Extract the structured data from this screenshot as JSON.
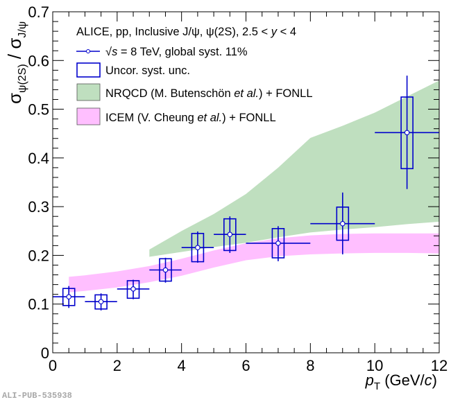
{
  "chart_data": {
    "type": "scatter",
    "title": "",
    "xlabel": "p_T (GeV/c)",
    "xlabel_parts": {
      "var": "p",
      "sub": "T",
      "unit": " (GeV/",
      "unit_var": "c",
      "close": ")"
    },
    "ylabel": "σ_ψ(2S) / σ_J/ψ",
    "ylabel_parts": {
      "sigma": "σ",
      "num_sub": "ψ(2S)",
      "slash": " / ",
      "den_sub": "J/ψ"
    },
    "xlim": [
      0,
      12
    ],
    "ylim": [
      0,
      0.7
    ],
    "x_ticks": [
      0,
      2,
      4,
      6,
      8,
      10,
      12
    ],
    "x_tick_labels": [
      "0",
      "2",
      "4",
      "6",
      "8",
      "10",
      "12"
    ],
    "y_ticks": [
      0,
      0.1,
      0.2,
      0.3,
      0.4,
      0.5,
      0.6,
      0.7
    ],
    "y_tick_labels": [
      "0",
      "0.1",
      "0.2",
      "0.3",
      "0.4",
      "0.5",
      "0.6",
      "0.7"
    ],
    "grid": false,
    "legend_position": "top-left",
    "legend": {
      "header": "ALICE, pp, Inclusive J/ψ, ψ(2S), 2.5 < y < 4",
      "header_parts": {
        "pre": "ALICE, pp, Inclusive J/ψ, ψ(2S), 2.5 < ",
        "var": "y",
        "post": " < 4"
      },
      "entries": [
        {
          "label": "√s = 8 TeV, global syst. 11%",
          "parts": {
            "root": "√",
            "var": "s",
            "post": " = 8 TeV, global syst. 11%"
          },
          "kind": "marker"
        },
        {
          "label": "Uncor. syst. unc.",
          "kind": "box"
        },
        {
          "label": "NRQCD (M. Butenschön et al.) + FONLL",
          "parts": {
            "pre": "NRQCD (M. Butenschön ",
            "ital": "et al.",
            "post": ") + FONLL"
          },
          "kind": "band-green"
        },
        {
          "label": "ICEM (V. Cheung et al.) + FONLL",
          "parts": {
            "pre": "ICEM (V. Cheung ",
            "ital": "et al.",
            "post": ") + FONLL"
          },
          "kind": "band-pink"
        }
      ]
    },
    "series": [
      {
        "name": "√s = 8 TeV, global syst. 11%",
        "type": "points",
        "color": "#0000cc",
        "points": [
          {
            "x": 0.5,
            "xlo": 0.0,
            "xhi": 1.0,
            "y": 0.115,
            "stat_lo": 0.092,
            "stat_hi": 0.137,
            "syst_lo": 0.097,
            "syst_hi": 0.132
          },
          {
            "x": 1.5,
            "xlo": 1.0,
            "xhi": 2.0,
            "y": 0.105,
            "stat_lo": 0.087,
            "stat_hi": 0.122,
            "syst_lo": 0.09,
            "syst_hi": 0.119
          },
          {
            "x": 2.5,
            "xlo": 2.0,
            "xhi": 3.0,
            "y": 0.131,
            "stat_lo": 0.11,
            "stat_hi": 0.15,
            "syst_lo": 0.112,
            "syst_hi": 0.148
          },
          {
            "x": 3.5,
            "xlo": 3.0,
            "xhi": 4.0,
            "y": 0.17,
            "stat_lo": 0.144,
            "stat_hi": 0.195,
            "syst_lo": 0.147,
            "syst_hi": 0.193
          },
          {
            "x": 4.5,
            "xlo": 4.0,
            "xhi": 5.0,
            "y": 0.216,
            "stat_lo": 0.185,
            "stat_hi": 0.249,
            "syst_lo": 0.187,
            "syst_hi": 0.245
          },
          {
            "x": 5.5,
            "xlo": 5.0,
            "xhi": 6.0,
            "y": 0.243,
            "stat_lo": 0.205,
            "stat_hi": 0.28,
            "syst_lo": 0.21,
            "syst_hi": 0.275
          },
          {
            "x": 7.0,
            "xlo": 6.0,
            "xhi": 8.0,
            "y": 0.225,
            "stat_lo": 0.188,
            "stat_hi": 0.26,
            "syst_lo": 0.195,
            "syst_hi": 0.255
          },
          {
            "x": 9.0,
            "xlo": 8.0,
            "xhi": 10.0,
            "y": 0.265,
            "stat_lo": 0.202,
            "stat_hi": 0.329,
            "syst_lo": 0.231,
            "syst_hi": 0.299
          },
          {
            "x": 11.0,
            "xlo": 10.0,
            "xhi": 12.0,
            "y": 0.452,
            "stat_lo": 0.336,
            "stat_hi": 0.569,
            "syst_lo": 0.378,
            "syst_hi": 0.525
          }
        ]
      },
      {
        "name": "NRQCD (M. Butenschön et al.) + FONLL",
        "type": "band",
        "color": "#bfdfbf",
        "x": [
          3.0,
          4.0,
          5.0,
          6.0,
          7.0,
          8.0,
          9.0,
          10.0,
          11.0,
          12.0
        ],
        "upper": [
          0.212,
          0.25,
          0.285,
          0.326,
          0.38,
          0.441,
          0.466,
          0.493,
          0.526,
          0.559
        ],
        "lower": [
          0.197,
          0.207,
          0.217,
          0.226,
          0.237,
          0.247,
          0.253,
          0.258,
          0.264,
          0.269
        ]
      },
      {
        "name": "ICEM (V. Cheung et al.) + FONLL",
        "type": "band",
        "color": "#ffbfff",
        "x": [
          0.5,
          1.0,
          2.0,
          3.0,
          4.0,
          5.0,
          6.0,
          7.0,
          8.0,
          9.0,
          10.0,
          11.0,
          12.0
        ],
        "upper": [
          0.156,
          0.159,
          0.167,
          0.178,
          0.193,
          0.21,
          0.225,
          0.235,
          0.241,
          0.244,
          0.245,
          0.245,
          0.245
        ],
        "lower": [
          0.124,
          0.127,
          0.134,
          0.145,
          0.158,
          0.175,
          0.19,
          0.198,
          0.202,
          0.204,
          0.205,
          0.205,
          0.204
        ]
      }
    ]
  },
  "watermark": "ALI-PUB-535938"
}
